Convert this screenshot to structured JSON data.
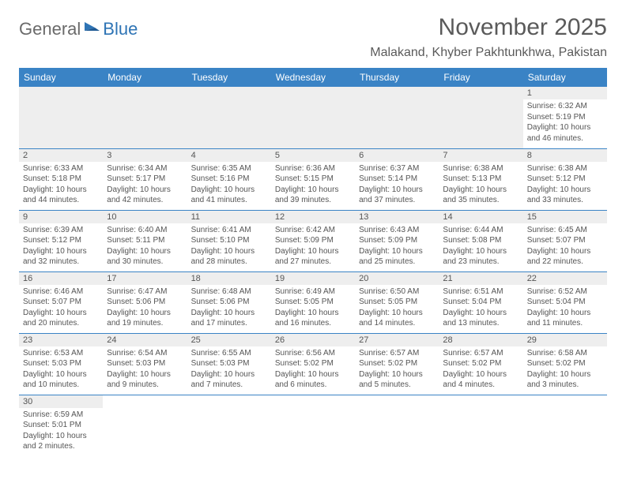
{
  "logo": {
    "part1": "General",
    "part2": "Blue",
    "color1": "#6a6a6a",
    "color2": "#2e74b5"
  },
  "title": "November 2025",
  "location": "Malakand, Khyber Pakhtunkhwa, Pakistan",
  "header_bg": "#3a83c5",
  "header_fg": "#ffffff",
  "daynum_bg": "#eeeeee",
  "row_border": "#3a83c5",
  "days_of_week": [
    "Sunday",
    "Monday",
    "Tuesday",
    "Wednesday",
    "Thursday",
    "Friday",
    "Saturday"
  ],
  "weeks": [
    [
      null,
      null,
      null,
      null,
      null,
      null,
      {
        "n": "1",
        "sr": "6:32 AM",
        "ss": "5:19 PM",
        "dl": "10 hours and 46 minutes."
      }
    ],
    [
      {
        "n": "2",
        "sr": "6:33 AM",
        "ss": "5:18 PM",
        "dl": "10 hours and 44 minutes."
      },
      {
        "n": "3",
        "sr": "6:34 AM",
        "ss": "5:17 PM",
        "dl": "10 hours and 42 minutes."
      },
      {
        "n": "4",
        "sr": "6:35 AM",
        "ss": "5:16 PM",
        "dl": "10 hours and 41 minutes."
      },
      {
        "n": "5",
        "sr": "6:36 AM",
        "ss": "5:15 PM",
        "dl": "10 hours and 39 minutes."
      },
      {
        "n": "6",
        "sr": "6:37 AM",
        "ss": "5:14 PM",
        "dl": "10 hours and 37 minutes."
      },
      {
        "n": "7",
        "sr": "6:38 AM",
        "ss": "5:13 PM",
        "dl": "10 hours and 35 minutes."
      },
      {
        "n": "8",
        "sr": "6:38 AM",
        "ss": "5:12 PM",
        "dl": "10 hours and 33 minutes."
      }
    ],
    [
      {
        "n": "9",
        "sr": "6:39 AM",
        "ss": "5:12 PM",
        "dl": "10 hours and 32 minutes."
      },
      {
        "n": "10",
        "sr": "6:40 AM",
        "ss": "5:11 PM",
        "dl": "10 hours and 30 minutes."
      },
      {
        "n": "11",
        "sr": "6:41 AM",
        "ss": "5:10 PM",
        "dl": "10 hours and 28 minutes."
      },
      {
        "n": "12",
        "sr": "6:42 AM",
        "ss": "5:09 PM",
        "dl": "10 hours and 27 minutes."
      },
      {
        "n": "13",
        "sr": "6:43 AM",
        "ss": "5:09 PM",
        "dl": "10 hours and 25 minutes."
      },
      {
        "n": "14",
        "sr": "6:44 AM",
        "ss": "5:08 PM",
        "dl": "10 hours and 23 minutes."
      },
      {
        "n": "15",
        "sr": "6:45 AM",
        "ss": "5:07 PM",
        "dl": "10 hours and 22 minutes."
      }
    ],
    [
      {
        "n": "16",
        "sr": "6:46 AM",
        "ss": "5:07 PM",
        "dl": "10 hours and 20 minutes."
      },
      {
        "n": "17",
        "sr": "6:47 AM",
        "ss": "5:06 PM",
        "dl": "10 hours and 19 minutes."
      },
      {
        "n": "18",
        "sr": "6:48 AM",
        "ss": "5:06 PM",
        "dl": "10 hours and 17 minutes."
      },
      {
        "n": "19",
        "sr": "6:49 AM",
        "ss": "5:05 PM",
        "dl": "10 hours and 16 minutes."
      },
      {
        "n": "20",
        "sr": "6:50 AM",
        "ss": "5:05 PM",
        "dl": "10 hours and 14 minutes."
      },
      {
        "n": "21",
        "sr": "6:51 AM",
        "ss": "5:04 PM",
        "dl": "10 hours and 13 minutes."
      },
      {
        "n": "22",
        "sr": "6:52 AM",
        "ss": "5:04 PM",
        "dl": "10 hours and 11 minutes."
      }
    ],
    [
      {
        "n": "23",
        "sr": "6:53 AM",
        "ss": "5:03 PM",
        "dl": "10 hours and 10 minutes."
      },
      {
        "n": "24",
        "sr": "6:54 AM",
        "ss": "5:03 PM",
        "dl": "10 hours and 9 minutes."
      },
      {
        "n": "25",
        "sr": "6:55 AM",
        "ss": "5:03 PM",
        "dl": "10 hours and 7 minutes."
      },
      {
        "n": "26",
        "sr": "6:56 AM",
        "ss": "5:02 PM",
        "dl": "10 hours and 6 minutes."
      },
      {
        "n": "27",
        "sr": "6:57 AM",
        "ss": "5:02 PM",
        "dl": "10 hours and 5 minutes."
      },
      {
        "n": "28",
        "sr": "6:57 AM",
        "ss": "5:02 PM",
        "dl": "10 hours and 4 minutes."
      },
      {
        "n": "29",
        "sr": "6:58 AM",
        "ss": "5:02 PM",
        "dl": "10 hours and 3 minutes."
      }
    ],
    [
      {
        "n": "30",
        "sr": "6:59 AM",
        "ss": "5:01 PM",
        "dl": "10 hours and 2 minutes."
      },
      null,
      null,
      null,
      null,
      null,
      null
    ]
  ],
  "labels": {
    "sunrise": "Sunrise:",
    "sunset": "Sunset:",
    "daylight": "Daylight:"
  }
}
